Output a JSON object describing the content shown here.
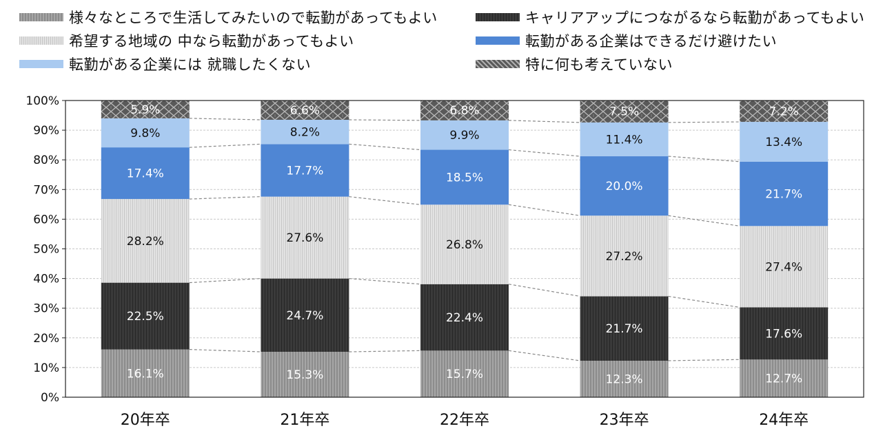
{
  "chart_data": {
    "type": "bar",
    "stacked": true,
    "percent": true,
    "categories": [
      "20年卒",
      "21年卒",
      "22年卒",
      "23年卒",
      "24年卒"
    ],
    "series": [
      {
        "name": "様々なところで生活してみたいので転勤があってもよい",
        "values": [
          16.1,
          15.3,
          15.7,
          12.3,
          12.7
        ],
        "labels": [
          "16.1%",
          "15.3%",
          "15.7%",
          "12.3%",
          "12.7%"
        ]
      },
      {
        "name": "キャリアアップにつながるなら転勤があってもよい",
        "values": [
          22.5,
          24.7,
          22.4,
          21.7,
          17.6
        ],
        "labels": [
          "22.5%",
          "24.7%",
          "22.4%",
          "21.7%",
          "17.6%"
        ]
      },
      {
        "name": "希望する地域の 中なら転勤があってもよい",
        "values": [
          28.2,
          27.6,
          26.8,
          27.2,
          27.4
        ],
        "labels": [
          "28.2%",
          "27.6%",
          "26.8%",
          "27.2%",
          "27.4%"
        ]
      },
      {
        "name": "転勤がある企業はできるだけ避けたい",
        "values": [
          17.4,
          17.7,
          18.5,
          20.0,
          21.7
        ],
        "labels": [
          "17.4%",
          "17.7%",
          "18.5%",
          "20.0%",
          "21.7%"
        ]
      },
      {
        "name": "転勤がある企業には 就職したくない",
        "values": [
          9.8,
          8.2,
          9.9,
          11.4,
          13.4
        ],
        "labels": [
          "9.8%",
          "8.2%",
          "9.9%",
          "11.4%",
          "13.4%"
        ]
      },
      {
        "name": "特に何も考えていない",
        "values": [
          5.9,
          6.6,
          6.8,
          7.5,
          7.2
        ],
        "labels": [
          "5.9%",
          "6.6%",
          "6.8%",
          "7.5%",
          "7.2%"
        ]
      }
    ],
    "yticks": [
      "0%",
      "10%",
      "20%",
      "30%",
      "40%",
      "50%",
      "60%",
      "70%",
      "80%",
      "90%",
      "100%"
    ],
    "ylim": [
      0,
      100
    ],
    "grid": true,
    "legend_position": "top",
    "series_colors": [
      "#9a9a9a",
      "#333333",
      "#d9d9d9",
      "#4f86d4",
      "#a9caf0",
      "#555555"
    ]
  }
}
